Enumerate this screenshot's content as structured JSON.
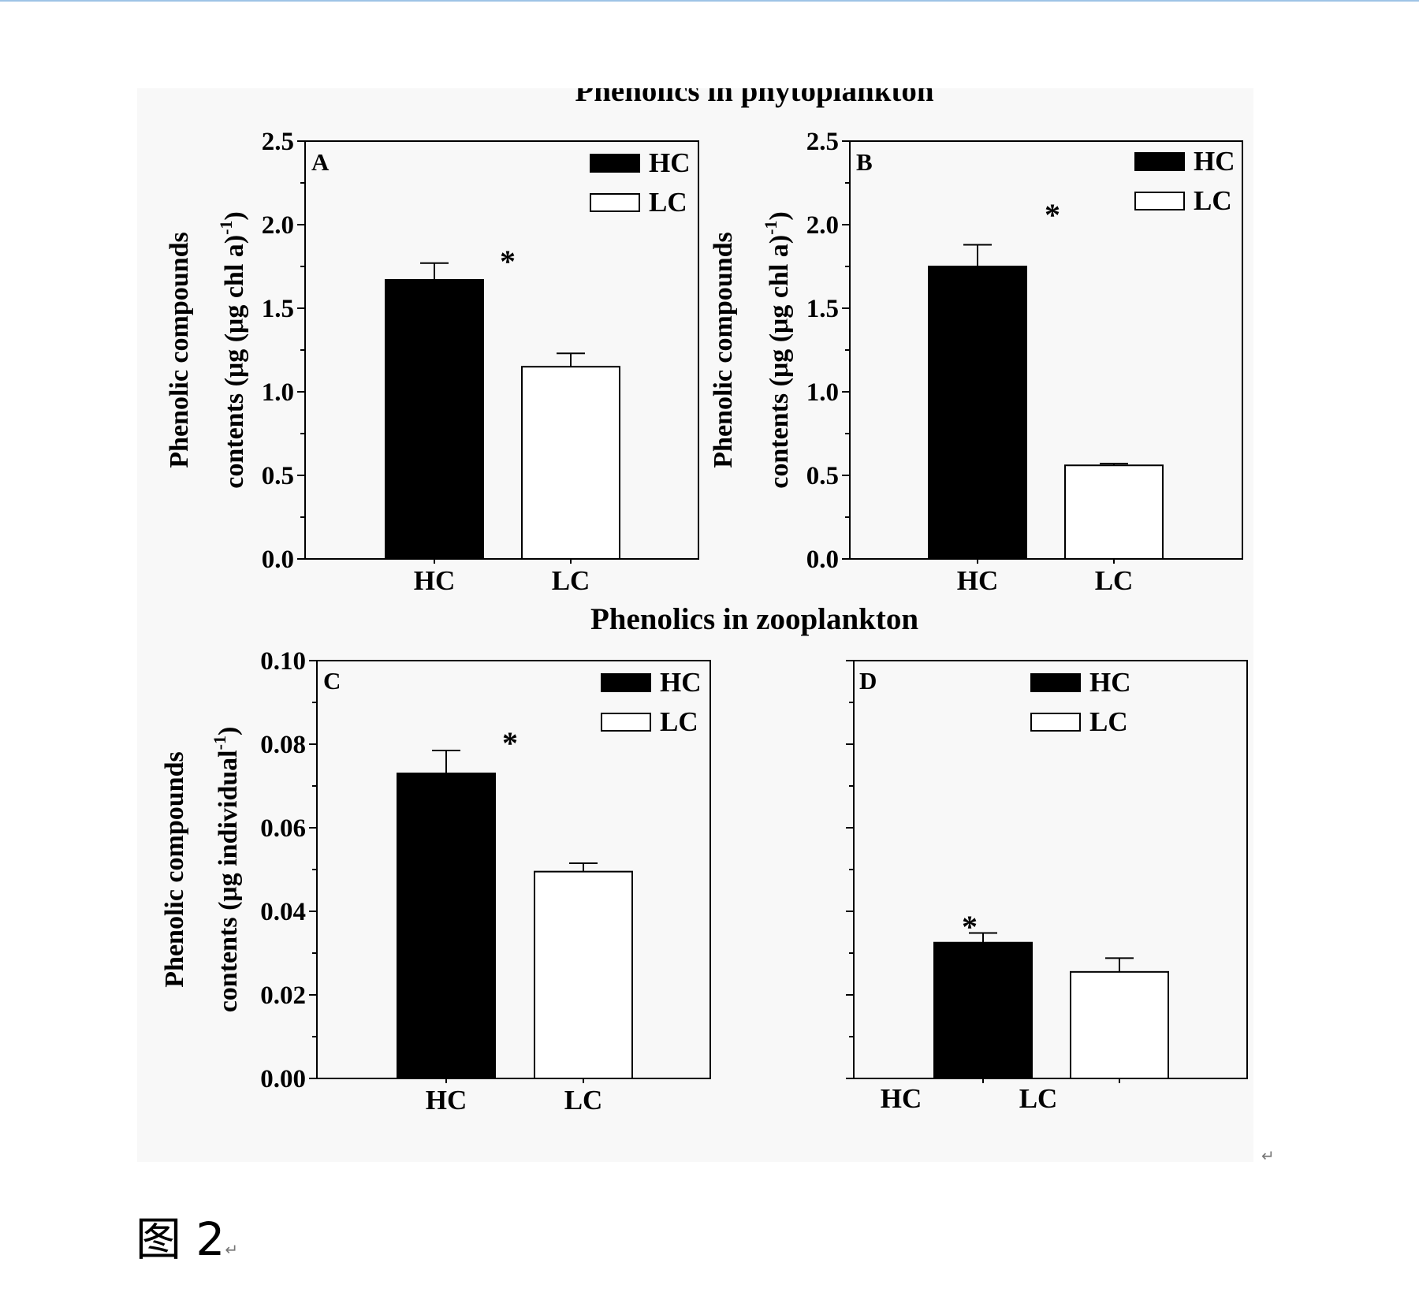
{
  "headings": {
    "phyto": "Phenolics in phytoplankton",
    "zoo": "Phenolics in zooplankton"
  },
  "caption": {
    "label": "图 2",
    "mark": "↵"
  },
  "end_mark": "↵",
  "colors": {
    "HC": "#000000",
    "LC": "#ffffff",
    "stroke": "#000000",
    "panel_bg": "#f8f8f8"
  },
  "chart_data": [
    {
      "type": "bar",
      "panel_label": "A",
      "categories": [
        "HC",
        "LC"
      ],
      "values": [
        1.67,
        1.15
      ],
      "errors": [
        0.1,
        0.08
      ],
      "ylim": [
        0,
        2.5
      ],
      "yticks": [
        "0.0",
        "0.5",
        "1.0",
        "1.5",
        "2.0",
        "2.5"
      ],
      "ylabel_line1": "Phenolic compounds",
      "ylabel_line2": "contents (μg (μg chl a)",
      "ylabel_sup": "-1",
      "ylabel_close": ")",
      "legend": [
        "HC",
        "LC"
      ],
      "annotation": "*",
      "legend_position": "top-right"
    },
    {
      "type": "bar",
      "panel_label": "B",
      "categories": [
        "HC",
        "LC"
      ],
      "values": [
        1.75,
        0.56
      ],
      "errors": [
        0.13,
        0.01
      ],
      "ylim": [
        0,
        2.5
      ],
      "yticks": [
        "0.0",
        "0.5",
        "1.0",
        "1.5",
        "2.0",
        "2.5"
      ],
      "ylabel_line1": "Phenolic compounds",
      "ylabel_line2": "contents (μg (μg chl a)",
      "ylabel_sup": "-1",
      "ylabel_close": ")",
      "legend": [
        "HC",
        "LC"
      ],
      "annotation": "*",
      "legend_position": "top-right"
    },
    {
      "type": "bar",
      "panel_label": "C",
      "categories": [
        "HC",
        "LC"
      ],
      "values": [
        0.073,
        0.0495
      ],
      "errors": [
        0.0055,
        0.002
      ],
      "ylim": [
        0,
        0.1
      ],
      "yticks": [
        "0.00",
        "0.02",
        "0.04",
        "0.06",
        "0.08",
        "0.10"
      ],
      "ylabel_line1": "Phenolic compounds",
      "ylabel_line2": "contents (μg individual",
      "ylabel_sup": "-1",
      "ylabel_close": ")",
      "legend": [
        "HC",
        "LC"
      ],
      "annotation": "*",
      "legend_position": "top-right"
    },
    {
      "type": "bar",
      "panel_label": "D",
      "categories": [
        "HC",
        "LC"
      ],
      "values": [
        0.0325,
        0.0255
      ],
      "errors": [
        0.0023,
        0.0033
      ],
      "ylim": [
        0,
        0.1
      ],
      "yticks": [],
      "ylabel_line1": "",
      "ylabel_line2": "",
      "ylabel_sup": "",
      "ylabel_close": "",
      "legend": [
        "HC",
        "LC"
      ],
      "annotation": "*",
      "legend_position": "top-right"
    }
  ]
}
